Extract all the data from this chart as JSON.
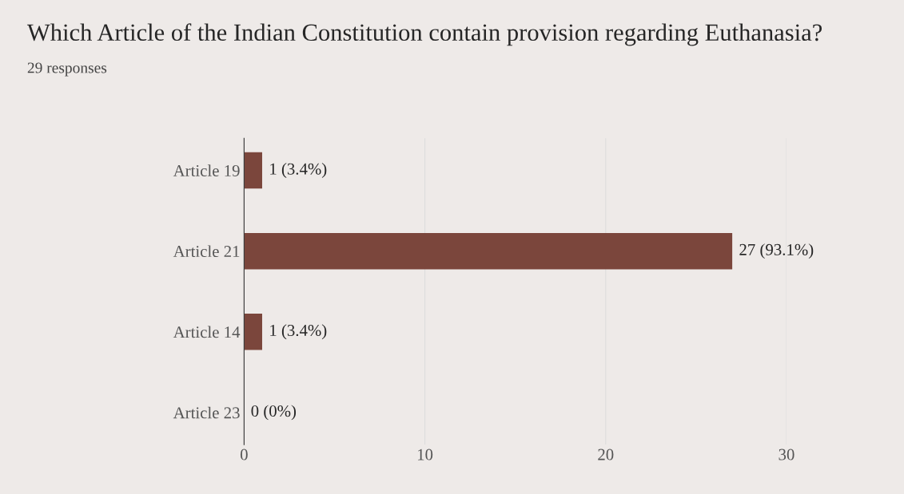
{
  "chart_data": {
    "type": "bar",
    "orientation": "horizontal",
    "title": "Which Article of the Indian Constitution contain provision regarding Euthanasia?",
    "subtitle": "29 responses",
    "categories": [
      "Article 19",
      "Article 21",
      "Article 14",
      "Article 23"
    ],
    "values": [
      1,
      27,
      1,
      0
    ],
    "value_labels": [
      "1 (3.4%)",
      "27 (93.1%)",
      "1 (3.4%)",
      "0 (0%)"
    ],
    "color": "#7b463c",
    "xlim": [
      0,
      30
    ],
    "xticks": [
      0,
      10,
      20,
      30
    ],
    "grid": "x"
  }
}
